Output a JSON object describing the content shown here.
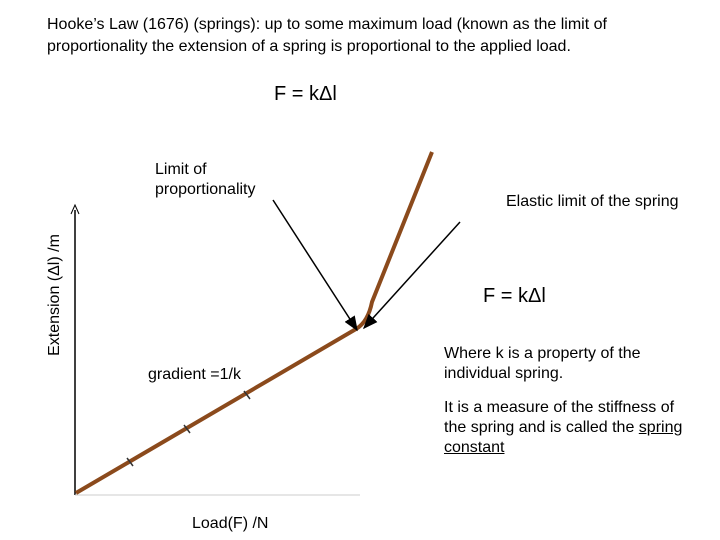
{
  "header": {
    "intro": "Hooke’s Law (1676) (springs): up to some maximum load (known as the limit of proportionality the extension of a spring is proportional to the applied load.",
    "formula": "F = kΔl"
  },
  "graph": {
    "y_axis_label": "Extension (Δl) /m",
    "x_axis_label": "Load(F) /N",
    "limit_label": "Limit of proportionality",
    "elastic_label": "Elastic limit of the spring",
    "gradient_label": "gradient =1/k",
    "formula": "F = kΔl"
  },
  "notes": {
    "property": "Where k is a property of the individual spring.",
    "measure": "It is a measure of the stiffness of the spring and is called the",
    "term": "spring constant"
  }
}
